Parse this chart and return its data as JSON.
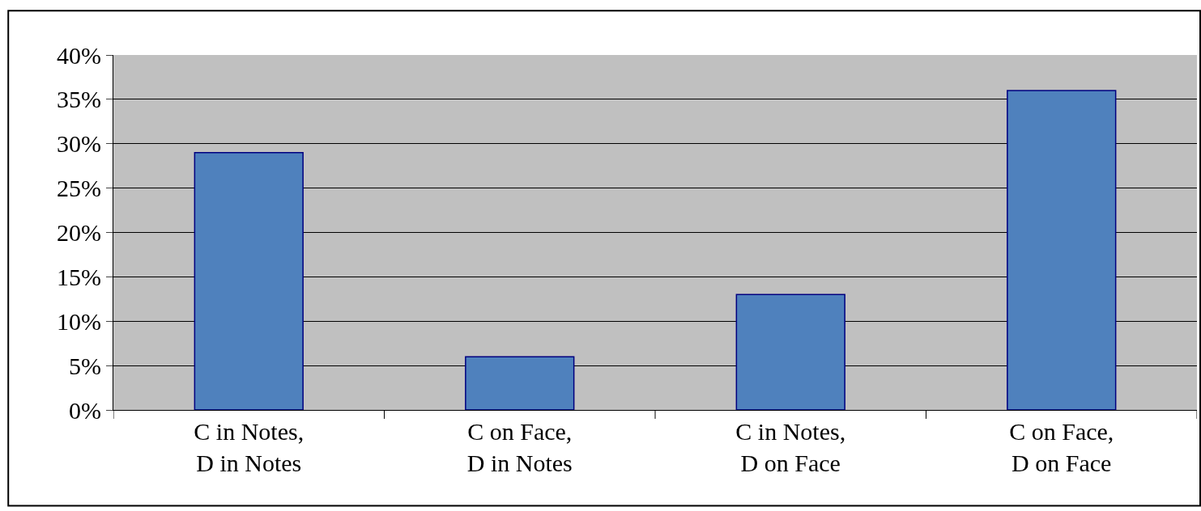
{
  "chart_data": {
    "type": "bar",
    "categories": [
      "C in Notes,\nD in Notes",
      "C on Face,\nD in Notes",
      "C in Notes,\nD on Face",
      "C on Face,\nD on Face"
    ],
    "values": [
      29,
      6,
      13,
      36
    ],
    "color": "#4f81bd",
    "ylim": [
      0,
      40
    ],
    "yticks": [
      {
        "value": 0,
        "label": "0%"
      },
      {
        "value": 5,
        "label": "5%"
      },
      {
        "value": 10,
        "label": "10%"
      },
      {
        "value": 15,
        "label": "15%"
      },
      {
        "value": 20,
        "label": "20%"
      },
      {
        "value": 25,
        "label": "25%"
      },
      {
        "value": 30,
        "label": "30%"
      },
      {
        "value": 35,
        "label": "35%"
      },
      {
        "value": 40,
        "label": "40%"
      }
    ],
    "grid": "y",
    "legend": false
  }
}
